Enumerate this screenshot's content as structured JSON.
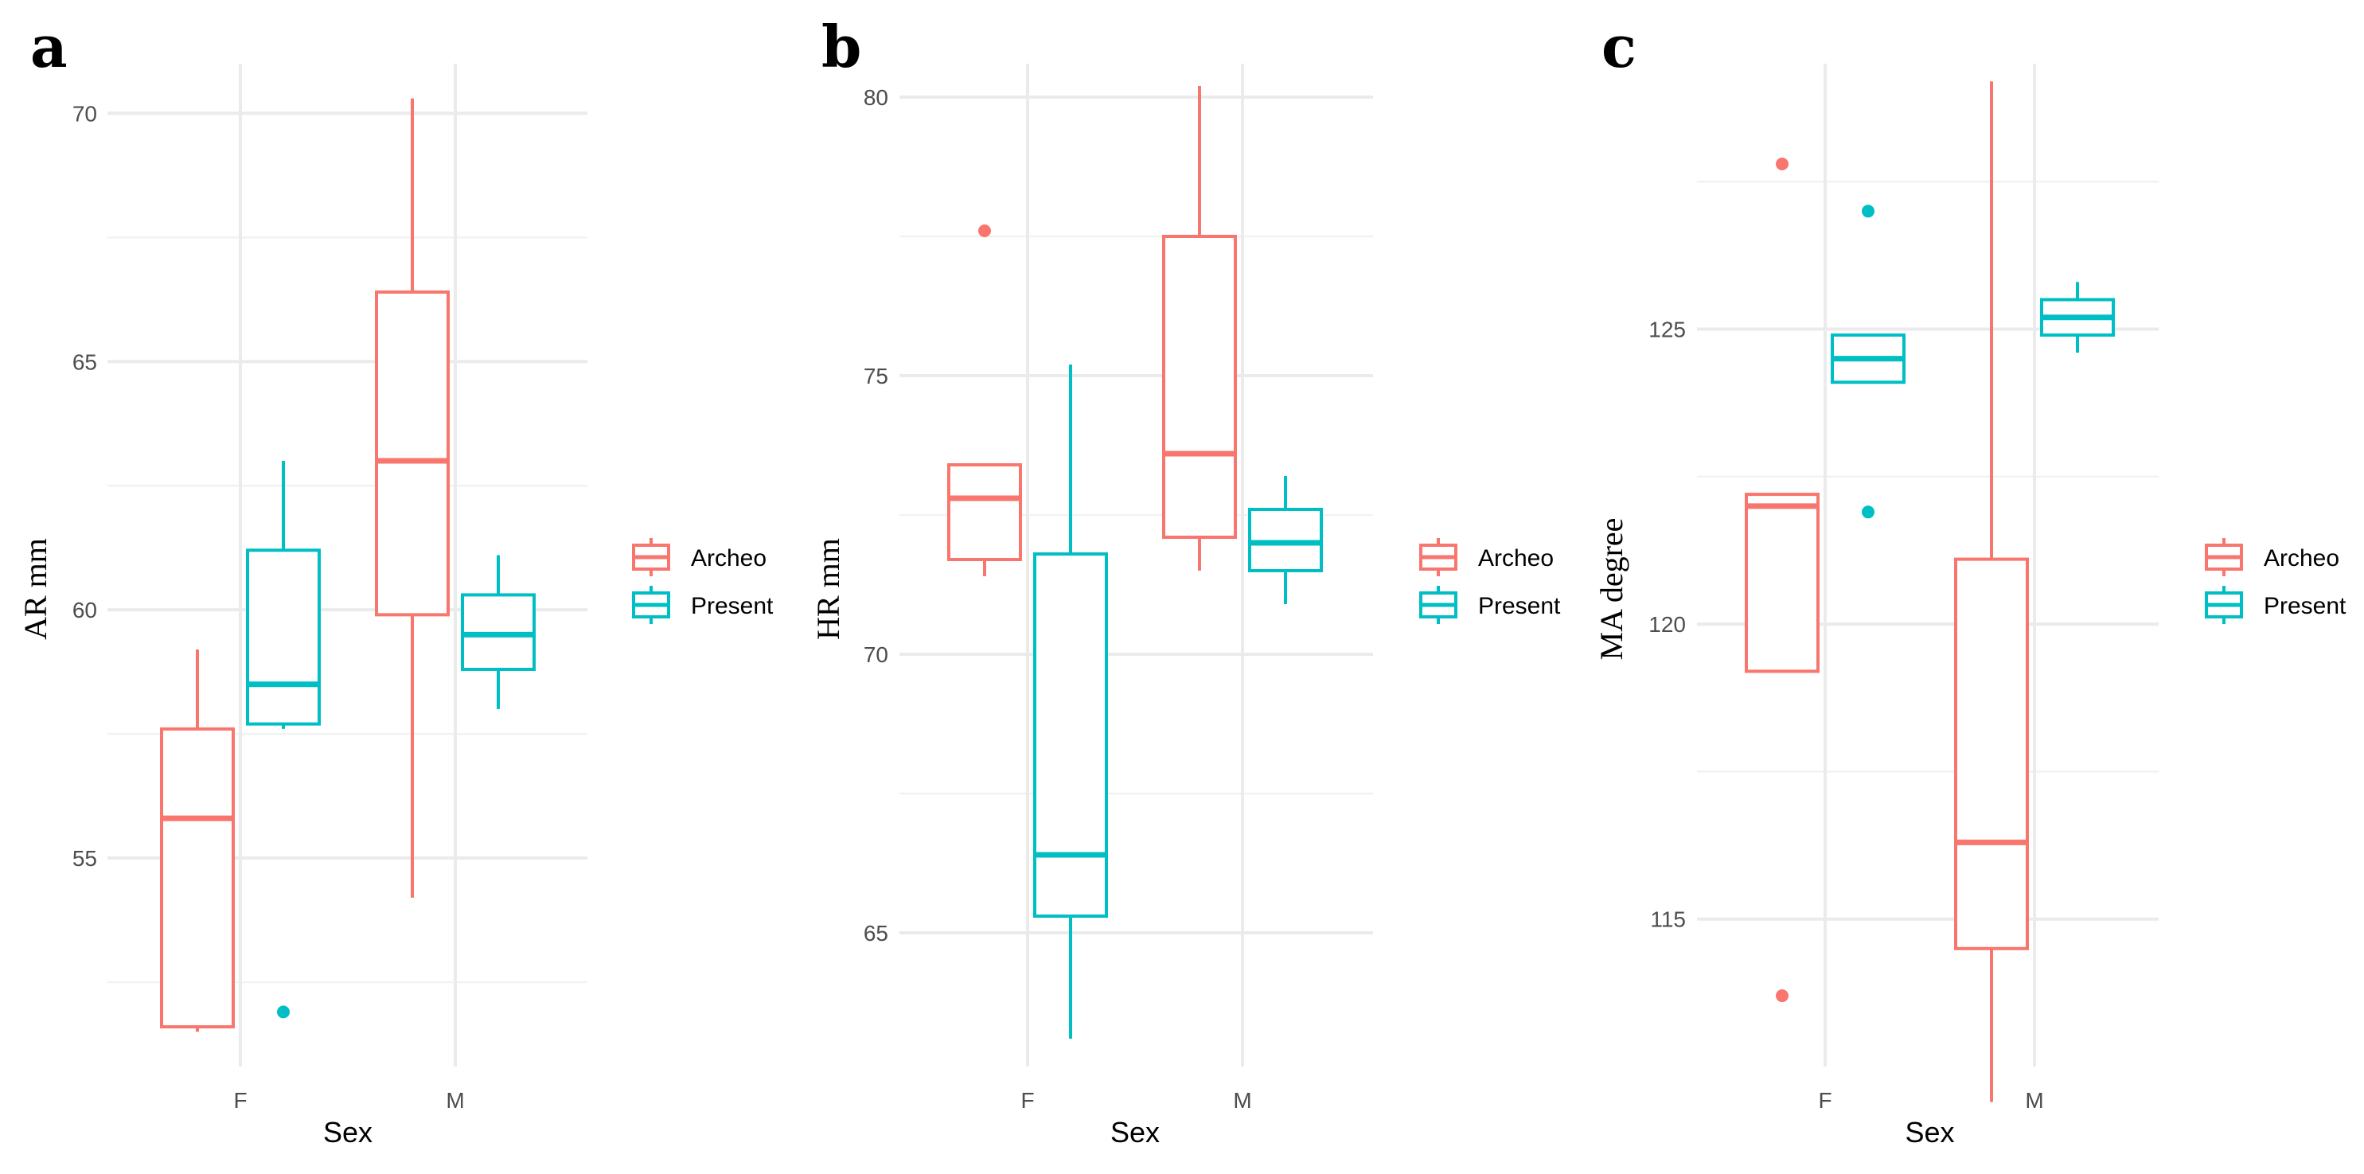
{
  "colors": {
    "archeo": "#F8766D",
    "present": "#00BFC4"
  },
  "legend": [
    {
      "label": "Archeo",
      "color": "#F8766D"
    },
    {
      "label": "Present",
      "color": "#00BFC4"
    }
  ],
  "chart_data": [
    {
      "panel": "a",
      "type": "box",
      "xlabel": "Sex",
      "ylabel": "AR mm",
      "categories": [
        "F",
        "M"
      ],
      "ylim": [
        50.8,
        71.0
      ],
      "yticks": [
        55,
        60,
        65,
        70
      ],
      "grid": true,
      "legend_position": "right",
      "series": [
        {
          "name": "Archeo",
          "color": "#F8766D",
          "boxes": [
            {
              "category": "F",
              "whisker_low": 51.5,
              "q1": 51.6,
              "median": 55.8,
              "q3": 57.6,
              "whisker_high": 59.2,
              "outliers": []
            },
            {
              "category": "M",
              "whisker_low": 54.2,
              "q1": 59.9,
              "median": 63.0,
              "q3": 66.4,
              "whisker_high": 70.3,
              "outliers": []
            }
          ]
        },
        {
          "name": "Present",
          "color": "#00BFC4",
          "boxes": [
            {
              "category": "F",
              "whisker_low": 57.6,
              "q1": 57.7,
              "median": 58.5,
              "q3": 61.2,
              "whisker_high": 63.0,
              "outliers": [
                51.9
              ]
            },
            {
              "category": "M",
              "whisker_low": 58.0,
              "q1": 58.8,
              "median": 59.5,
              "q3": 60.3,
              "whisker_high": 61.1,
              "outliers": []
            }
          ]
        }
      ]
    },
    {
      "panel": "b",
      "type": "box",
      "xlabel": "Sex",
      "ylabel": "HR mm",
      "categories": [
        "F",
        "M"
      ],
      "ylim": [
        62.6,
        80.6
      ],
      "yticks": [
        65,
        70,
        75,
        80
      ],
      "grid": true,
      "legend_position": "right",
      "series": [
        {
          "name": "Archeo",
          "color": "#F8766D",
          "boxes": [
            {
              "category": "F",
              "whisker_low": 71.4,
              "q1": 71.7,
              "median": 72.8,
              "q3": 73.4,
              "whisker_high": 73.4,
              "outliers": [
                77.6
              ]
            },
            {
              "category": "M",
              "whisker_low": 71.5,
              "q1": 72.1,
              "median": 73.6,
              "q3": 77.5,
              "whisker_high": 80.2,
              "outliers": []
            }
          ]
        },
        {
          "name": "Present",
          "color": "#00BFC4",
          "boxes": [
            {
              "category": "F",
              "whisker_low": 63.1,
              "q1": 65.3,
              "median": 66.4,
              "q3": 71.8,
              "whisker_high": 75.2,
              "outliers": []
            },
            {
              "category": "M",
              "whisker_low": 70.9,
              "q1": 71.5,
              "median": 72.0,
              "q3": 72.6,
              "whisker_high": 73.2,
              "outliers": []
            }
          ]
        }
      ]
    },
    {
      "panel": "c",
      "type": "box",
      "xlabel": "Sex",
      "ylabel": "MA degree",
      "categories": [
        "F",
        "M"
      ],
      "ylim": [
        112.5,
        129.5
      ],
      "yticks": [
        115,
        120,
        125
      ],
      "grid": true,
      "legend_position": "right",
      "series": [
        {
          "name": "Archeo",
          "color": "#F8766D",
          "boxes": [
            {
              "category": "F",
              "whisker_low": 119.2,
              "q1": 119.2,
              "median": 122.0,
              "q3": 122.2,
              "whisker_high": 122.2,
              "outliers": [
                127.8,
                113.7
              ]
            },
            {
              "category": "M",
              "whisker_low": 111.9,
              "q1": 114.5,
              "median": 116.3,
              "q3": 121.1,
              "whisker_high": 129.2,
              "outliers": []
            }
          ]
        },
        {
          "name": "Present",
          "color": "#00BFC4",
          "boxes": [
            {
              "category": "F",
              "whisker_low": 124.1,
              "q1": 124.1,
              "median": 124.5,
              "q3": 124.9,
              "whisker_high": 124.9,
              "outliers": [
                127.0,
                121.9
              ]
            },
            {
              "category": "M",
              "whisker_low": 124.6,
              "q1": 124.9,
              "median": 125.2,
              "q3": 125.5,
              "whisker_high": 125.8,
              "outliers": []
            }
          ]
        }
      ]
    }
  ]
}
